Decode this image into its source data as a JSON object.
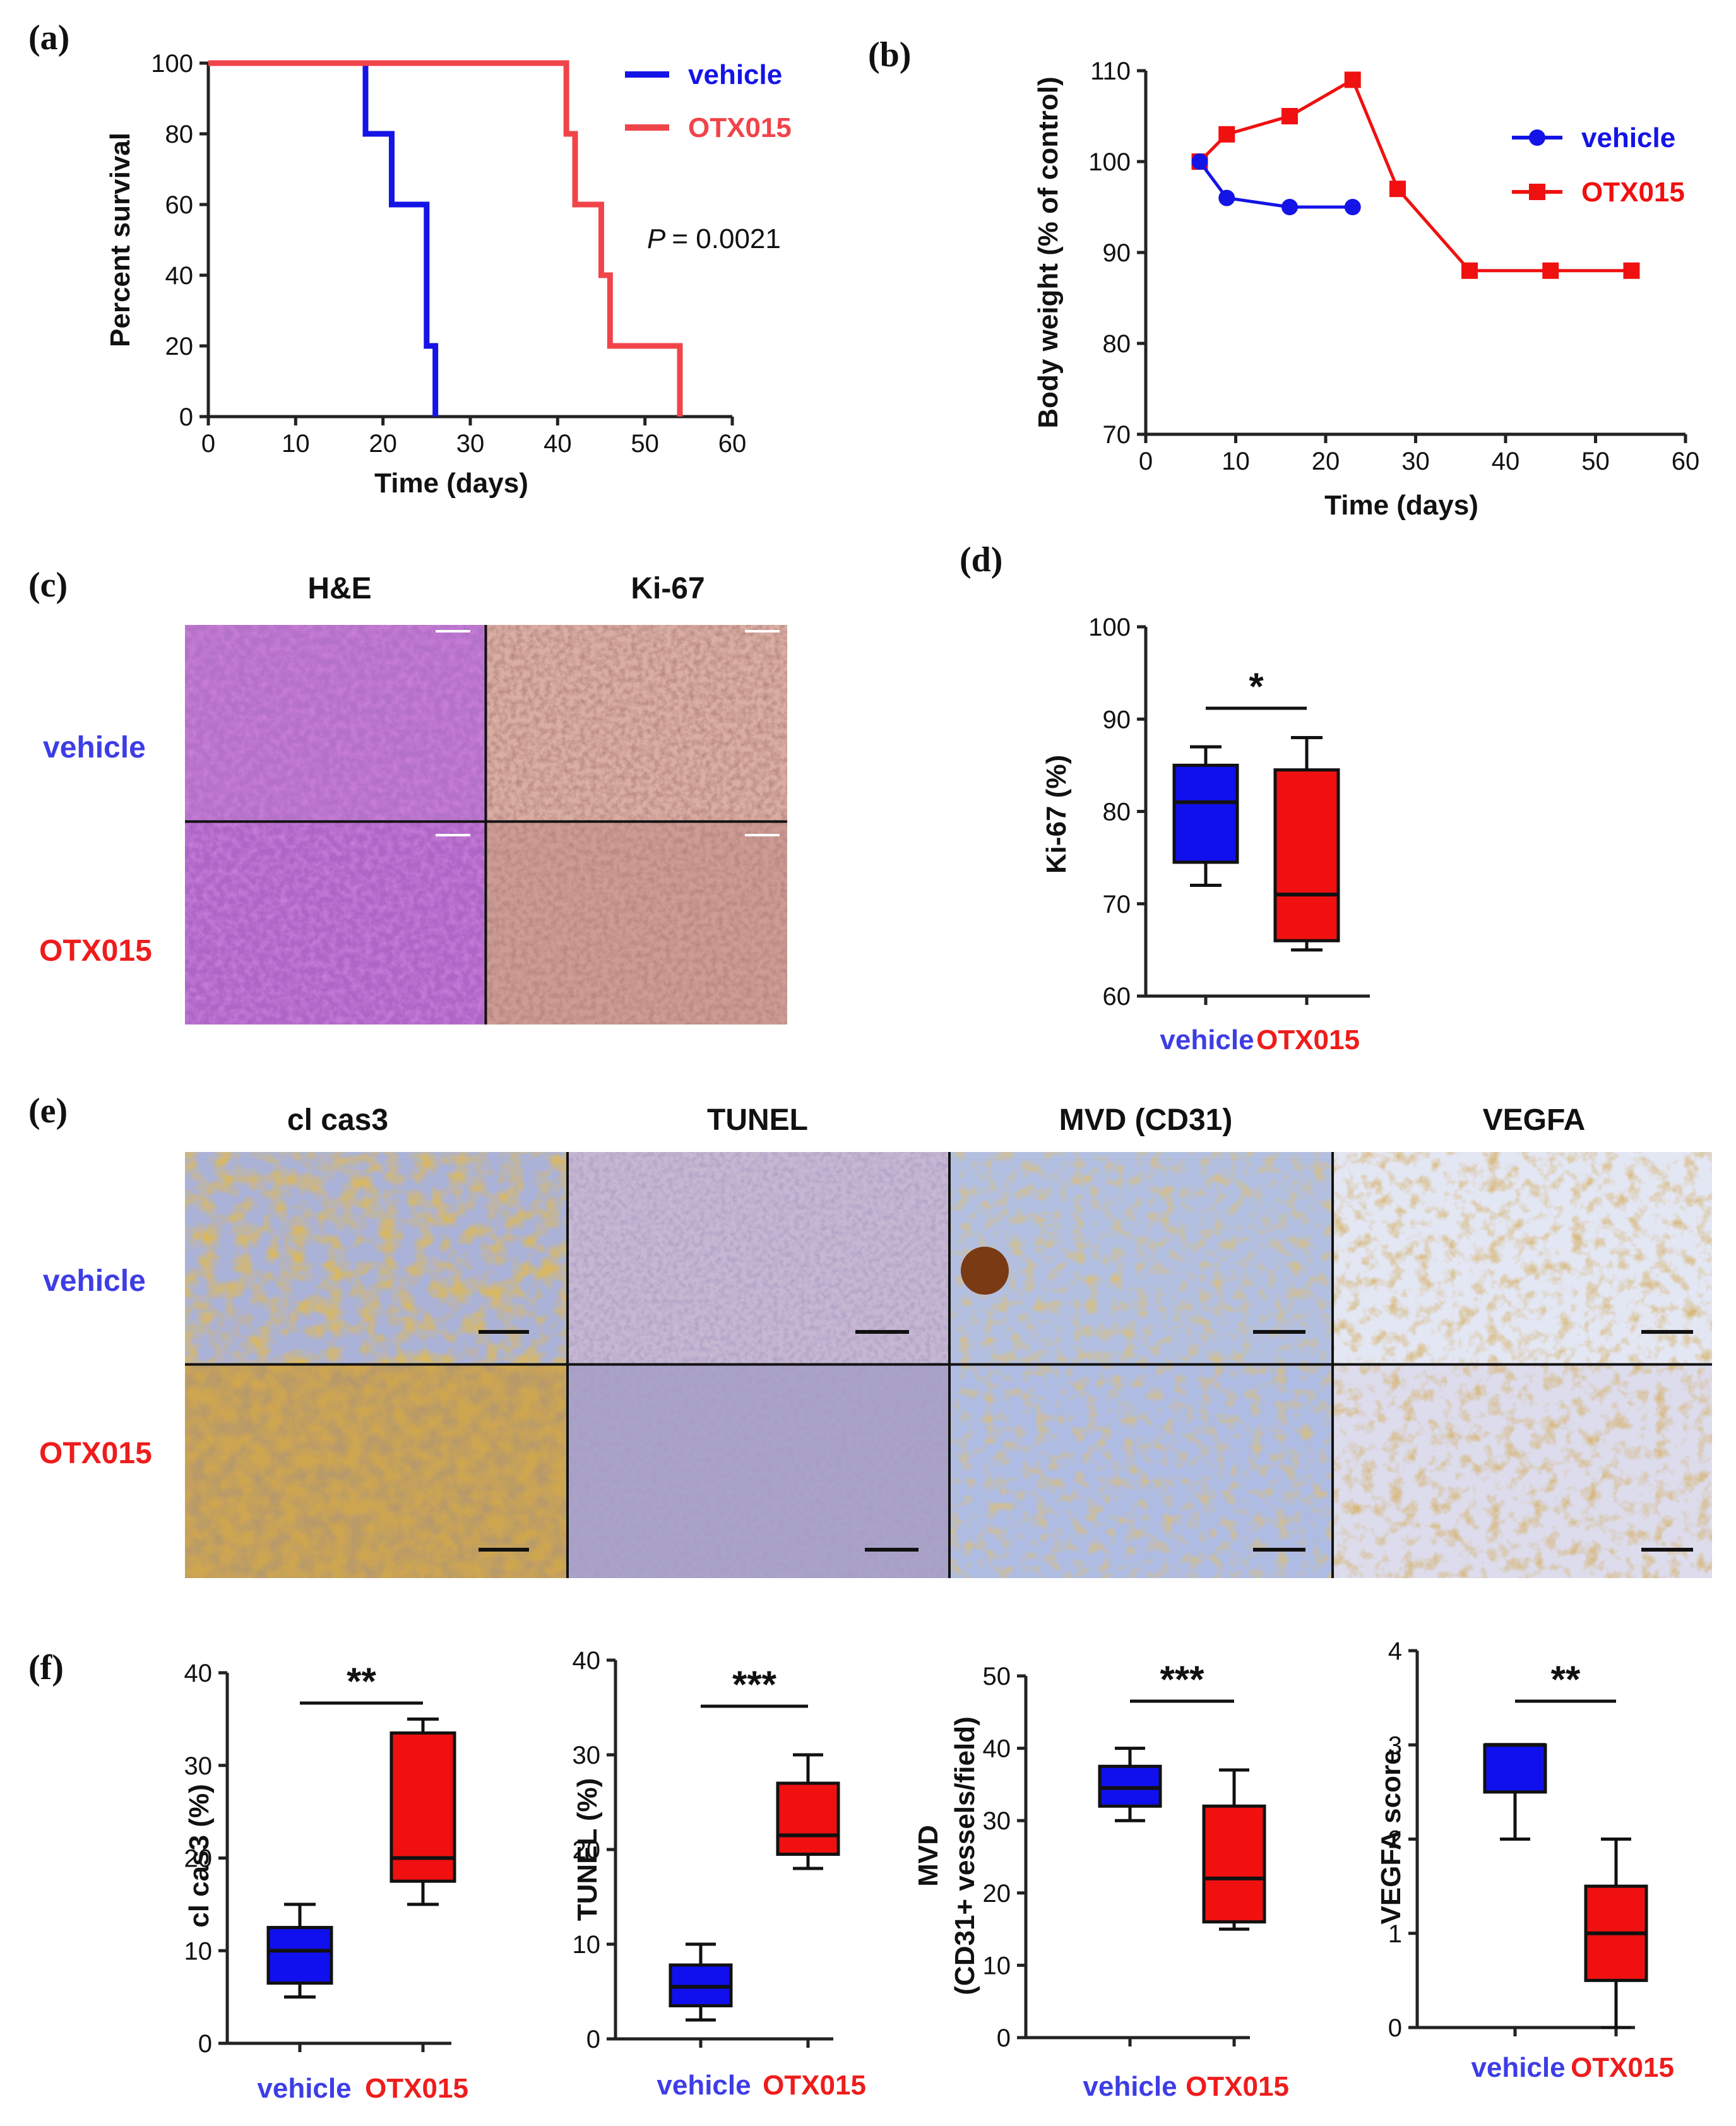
{
  "figure": {
    "panels": {
      "a": "(a)",
      "b": "(b)",
      "c": "(c)",
      "d": "(d)",
      "e": "(e)",
      "f": "(f)"
    },
    "colors": {
      "vehicle": "#1414e6",
      "otx015": "#f0444a",
      "boxVehicle": "#1010ee",
      "boxOtx": "#f01010",
      "labelVehicle": "#3d3de6",
      "labelOtx": "#ee1c1c"
    },
    "histology_c": {
      "columns": [
        "H&E",
        "Ki-67"
      ],
      "rows": [
        "vehicle",
        "OTX015"
      ]
    },
    "histology_e": {
      "columns": [
        "cl cas3",
        "TUNEL",
        "MVD (CD31)",
        "VEGFA"
      ],
      "rows": [
        "vehicle",
        "OTX015"
      ]
    }
  },
  "chart_data": [
    {
      "id": "a",
      "type": "line",
      "step": true,
      "xlabel": "Time (days)",
      "ylabel": "Percent survival",
      "xlim": [
        0,
        60
      ],
      "ylim": [
        0,
        100
      ],
      "xticks": [
        0,
        10,
        20,
        30,
        40,
        50,
        60
      ],
      "yticks": [
        0,
        20,
        40,
        60,
        80,
        100
      ],
      "annotation": {
        "p_label": "P",
        "p_value": "= 0.0021"
      },
      "series": [
        {
          "name": "vehicle",
          "x": [
            0,
            18,
            21,
            25,
            26
          ],
          "y": [
            100,
            80,
            60,
            20,
            0
          ]
        },
        {
          "name": "OTX015",
          "x": [
            0,
            41,
            42,
            45,
            46,
            54
          ],
          "y": [
            100,
            80,
            60,
            40,
            20,
            0
          ]
        }
      ]
    },
    {
      "id": "b",
      "type": "line",
      "xlabel": "Time (days)",
      "ylabel": "Body weight (% of control)",
      "xlim": [
        0,
        60
      ],
      "ylim": [
        70,
        110
      ],
      "xticks": [
        0,
        10,
        20,
        30,
        40,
        50,
        60
      ],
      "yticks": [
        70,
        80,
        90,
        100,
        110
      ],
      "series": [
        {
          "name": "vehicle",
          "marker": "circle",
          "x": [
            6,
            9,
            16,
            23
          ],
          "y": [
            100,
            96,
            95,
            95
          ]
        },
        {
          "name": "OTX015",
          "marker": "square",
          "x": [
            6,
            9,
            16,
            23,
            28,
            36,
            45,
            54
          ],
          "y": [
            100,
            103,
            105,
            109,
            97,
            88,
            88,
            88
          ]
        }
      ]
    },
    {
      "id": "d",
      "type": "box",
      "ylabel": "Ki-67 (%)",
      "ylim": [
        60,
        100
      ],
      "yticks": [
        60,
        70,
        80,
        90,
        100
      ],
      "categories": [
        "vehicle",
        "OTX015"
      ],
      "boxes": [
        {
          "min": 72,
          "q1": 74.5,
          "median": 81,
          "q3": 85,
          "max": 87
        },
        {
          "min": 65,
          "q1": 66,
          "median": 71,
          "q3": 84.5,
          "max": 88
        }
      ],
      "significance": "*"
    },
    {
      "id": "f1",
      "type": "box",
      "ylabel": "cl cas3 (%)",
      "ylim": [
        0,
        40
      ],
      "yticks": [
        0,
        10,
        20,
        30,
        40
      ],
      "categories": [
        "vehicle",
        "OTX015"
      ],
      "boxes": [
        {
          "min": 5,
          "q1": 6.5,
          "median": 10,
          "q3": 12.5,
          "max": 15
        },
        {
          "min": 15,
          "q1": 17.5,
          "median": 20,
          "q3": 33.5,
          "max": 35
        }
      ],
      "significance": "**"
    },
    {
      "id": "f2",
      "type": "box",
      "ylabel": "TUNEL (%)",
      "ylim": [
        0,
        40
      ],
      "yticks": [
        0,
        10,
        20,
        30,
        40
      ],
      "categories": [
        "vehicle",
        "OTX015"
      ],
      "boxes": [
        {
          "min": 2,
          "q1": 3.5,
          "median": 5.5,
          "q3": 7.8,
          "max": 10
        },
        {
          "min": 18,
          "q1": 19.5,
          "median": 21.5,
          "q3": 27,
          "max": 30
        }
      ],
      "significance": "***"
    },
    {
      "id": "f3",
      "type": "box",
      "ylabel": "MVD",
      "ylabel2": "(CD31+ vessels/field)",
      "ylim": [
        0,
        50
      ],
      "yticks": [
        0,
        10,
        20,
        30,
        40,
        50
      ],
      "categories": [
        "vehicle",
        "OTX015"
      ],
      "boxes": [
        {
          "min": 30,
          "q1": 32,
          "median": 34.5,
          "q3": 37.5,
          "max": 40
        },
        {
          "min": 15,
          "q1": 16,
          "median": 22,
          "q3": 32,
          "max": 37
        }
      ],
      "significance": "***"
    },
    {
      "id": "f4",
      "type": "box",
      "ylabel": "VEGFA score",
      "ylim": [
        0,
        4
      ],
      "yticks": [
        0,
        1,
        2,
        3,
        4
      ],
      "categories": [
        "vehicle",
        "OTX015"
      ],
      "boxes": [
        {
          "min": 2,
          "q1": 2.5,
          "median": 3,
          "q3": 3,
          "max": 3
        },
        {
          "min": 0,
          "q1": 0.5,
          "median": 1,
          "q3": 1.5,
          "max": 2
        }
      ],
      "significance": "**"
    }
  ]
}
